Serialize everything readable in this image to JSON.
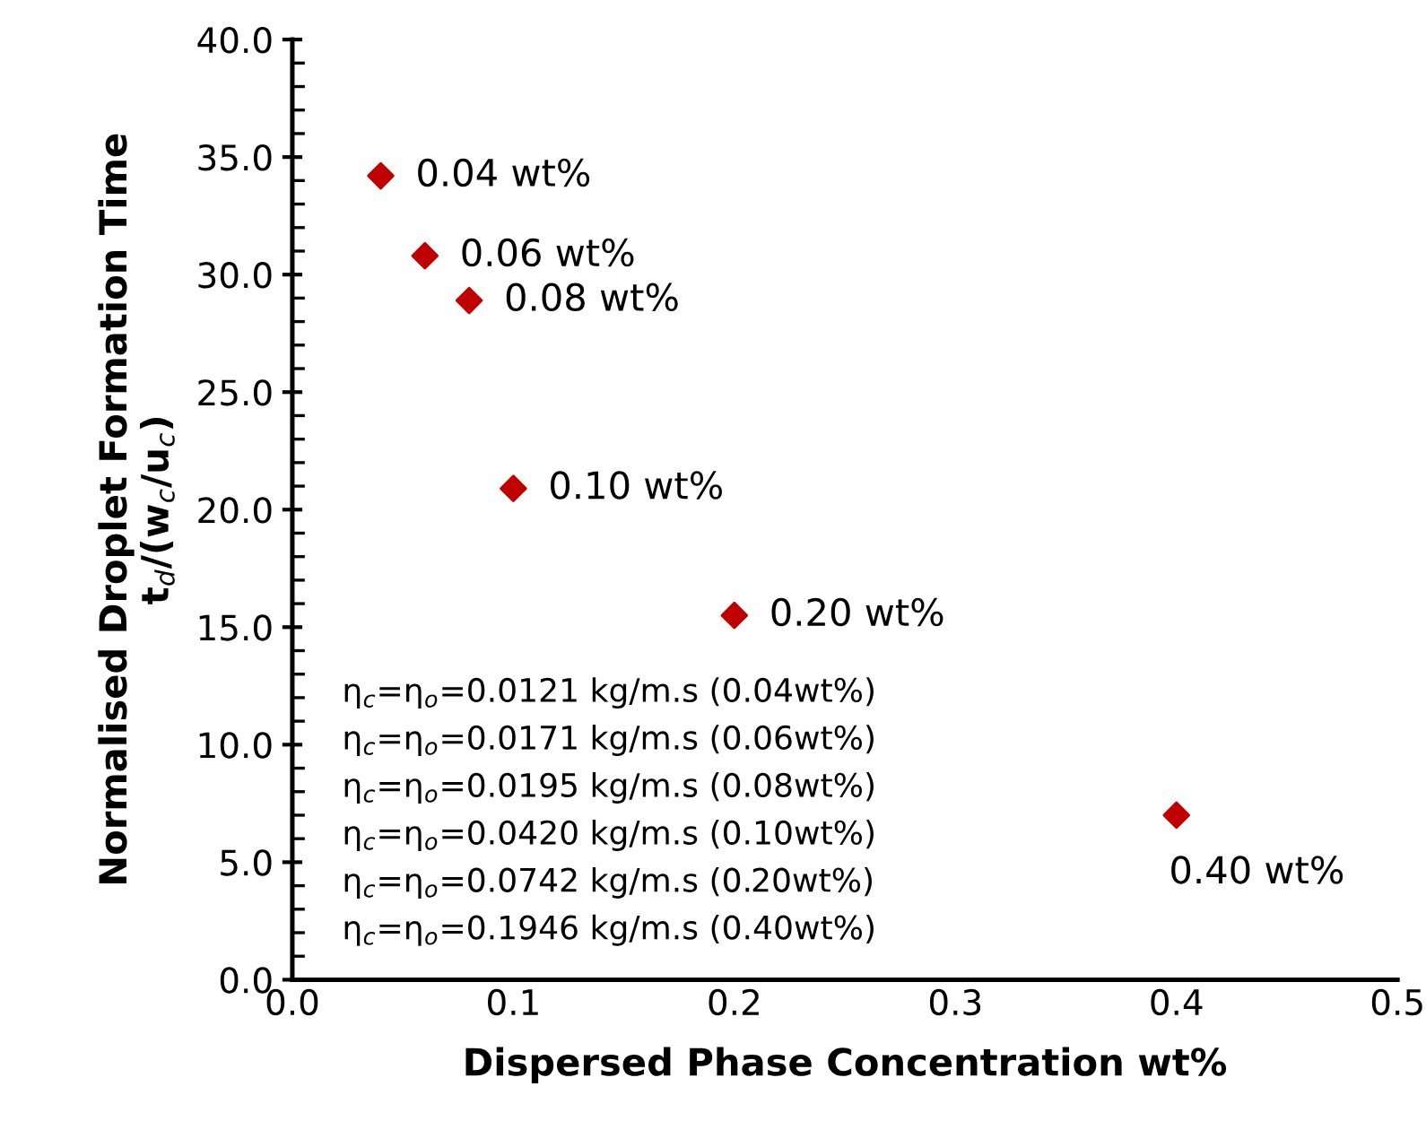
{
  "chart_data": {
    "type": "scatter",
    "xlabel": "Dispersed Phase Concentration wt%",
    "ylabel": "Normalised Droplet Formation Time\nt$_{d}$/(w$_{c}$/u$_{c}$)",
    "x": [
      0.04,
      0.06,
      0.08,
      0.1,
      0.2,
      0.4
    ],
    "series": [
      {
        "color": "#c00000",
        "values": [
          34.2,
          30.8,
          28.9,
          20.9,
          15.5,
          7.0
        ]
      }
    ],
    "marker": "diamond",
    "grid": false,
    "legend": false,
    "xlim": [
      0.0,
      0.5
    ],
    "xticks": [
      {
        "value": 0.0,
        "label": "0.0"
      },
      0.1,
      0.2,
      0.3,
      0.4,
      0.5
    ],
    "ylim": [
      0.0,
      40.0
    ],
    "yticks": [
      {
        "value": 0,
        "label": "0.0"
      },
      {
        "value": 1,
        "label": null
      },
      {
        "value": 2,
        "label": null
      },
      {
        "value": 3,
        "label": null
      },
      {
        "value": 4,
        "label": null
      },
      {
        "value": 5,
        "label": "5.0"
      },
      {
        "value": 6,
        "label": null
      },
      {
        "value": 7,
        "label": null
      },
      {
        "value": 8,
        "label": null
      },
      {
        "value": 9,
        "label": null
      },
      {
        "value": 10,
        "label": "10.0"
      },
      {
        "value": 11,
        "label": null
      },
      {
        "value": 12,
        "label": null
      },
      {
        "value": 13,
        "label": null
      },
      {
        "value": 14,
        "label": null
      },
      {
        "value": 15,
        "label": "15.0"
      },
      {
        "value": 16,
        "label": null
      },
      {
        "value": 17,
        "label": null
      },
      {
        "value": 18,
        "label": null
      },
      {
        "value": 19,
        "label": null
      },
      {
        "value": 20,
        "label": "20.0"
      },
      {
        "value": 21,
        "label": null
      },
      {
        "value": 22,
        "label": null
      },
      {
        "value": 23,
        "label": null
      },
      {
        "value": 24,
        "label": null
      },
      {
        "value": 25,
        "label": "25.0"
      },
      {
        "value": 26,
        "label": null
      },
      {
        "value": 27,
        "label": null
      },
      {
        "value": 28,
        "label": null
      },
      {
        "value": 29,
        "label": null
      },
      {
        "value": 30,
        "label": "30.0"
      },
      {
        "value": 31,
        "label": null
      },
      {
        "value": 32,
        "label": null
      },
      {
        "value": 33,
        "label": null
      },
      {
        "value": 34,
        "label": null
      },
      {
        "value": 35,
        "label": "35.0"
      },
      {
        "value": 36,
        "label": null
      },
      {
        "value": 37,
        "label": null
      },
      {
        "value": 38,
        "label": null
      },
      {
        "value": 39,
        "label": null
      },
      {
        "value": 40,
        "label": "40.0"
      }
    ],
    "annotations": [
      {
        "text": "0.04 wt%",
        "x": 0.04,
        "y": 34.2
      },
      {
        "text": "0.06 wt%",
        "x": 0.06,
        "y": 30.8
      },
      {
        "text": "0.08 wt%",
        "x": 0.08,
        "y": 28.9
      },
      {
        "text": "0.10 wt%",
        "x": 0.1,
        "y": 20.9
      },
      {
        "text": "0.20 wt%",
        "x": 0.2,
        "y": 15.5
      },
      {
        "text": "0.40 wt%",
        "x": 0.4,
        "y": 7.0
      },
      "η$_{c}$=η$_{o}$=0.0121 kg/m.s (0.04wt%)",
      "η$_{c}$=η$_{o}$=0.0171 kg/m.s (0.06wt%)",
      "η$_{c}$=η$_{o}$=0.0195 kg/m.s (0.08wt%)",
      "η$_{c}$=η$_{o}$=0.0420 kg/m.s (0.10wt%)",
      "η$_{c}$=η$_{o}$=0.0742 kg/m.s (0.20wt%)",
      "η$_{c}$=η$_{o}$=0.1946 kg/m.s (0.40wt%)"
    ]
  }
}
